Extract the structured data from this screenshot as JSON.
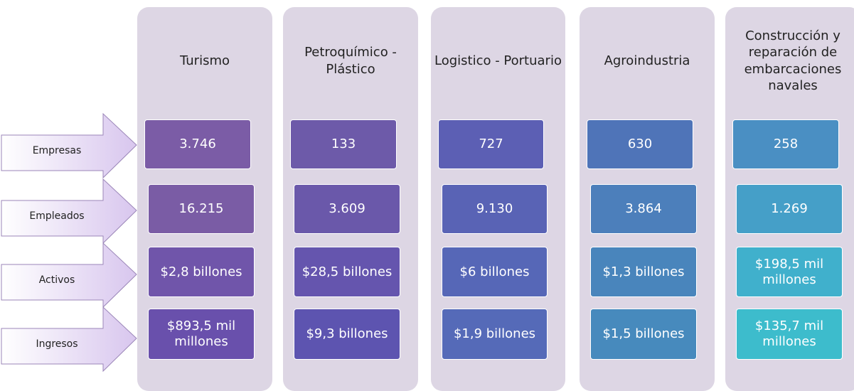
{
  "row_labels": [
    "Empresas",
    "Empleados",
    "Activos",
    "Ingresos"
  ],
  "columns": [
    {
      "header": "Turismo",
      "cells": [
        "3.746",
        "16.215",
        "$2,8 billones",
        "$893,5 mil millones"
      ]
    },
    {
      "header": "Petroquímico - Plástico",
      "cells": [
        "133",
        "3.609",
        "$28,5 billones",
        "$9,3 billones"
      ]
    },
    {
      "header": "Logistico - Portuario",
      "cells": [
        "727",
        "9.130",
        "$6 billones",
        "$1,9 billones"
      ]
    },
    {
      "header": "Agroindustria",
      "cells": [
        "630",
        "3.864",
        "$1,3 billones",
        "$1,5 billones"
      ]
    },
    {
      "header": "Construcción y reparación de embarcaciones navales",
      "cells": [
        "258",
        "1.269",
        "$198,5 mil millones",
        "$135,7  mil millones"
      ]
    }
  ]
}
